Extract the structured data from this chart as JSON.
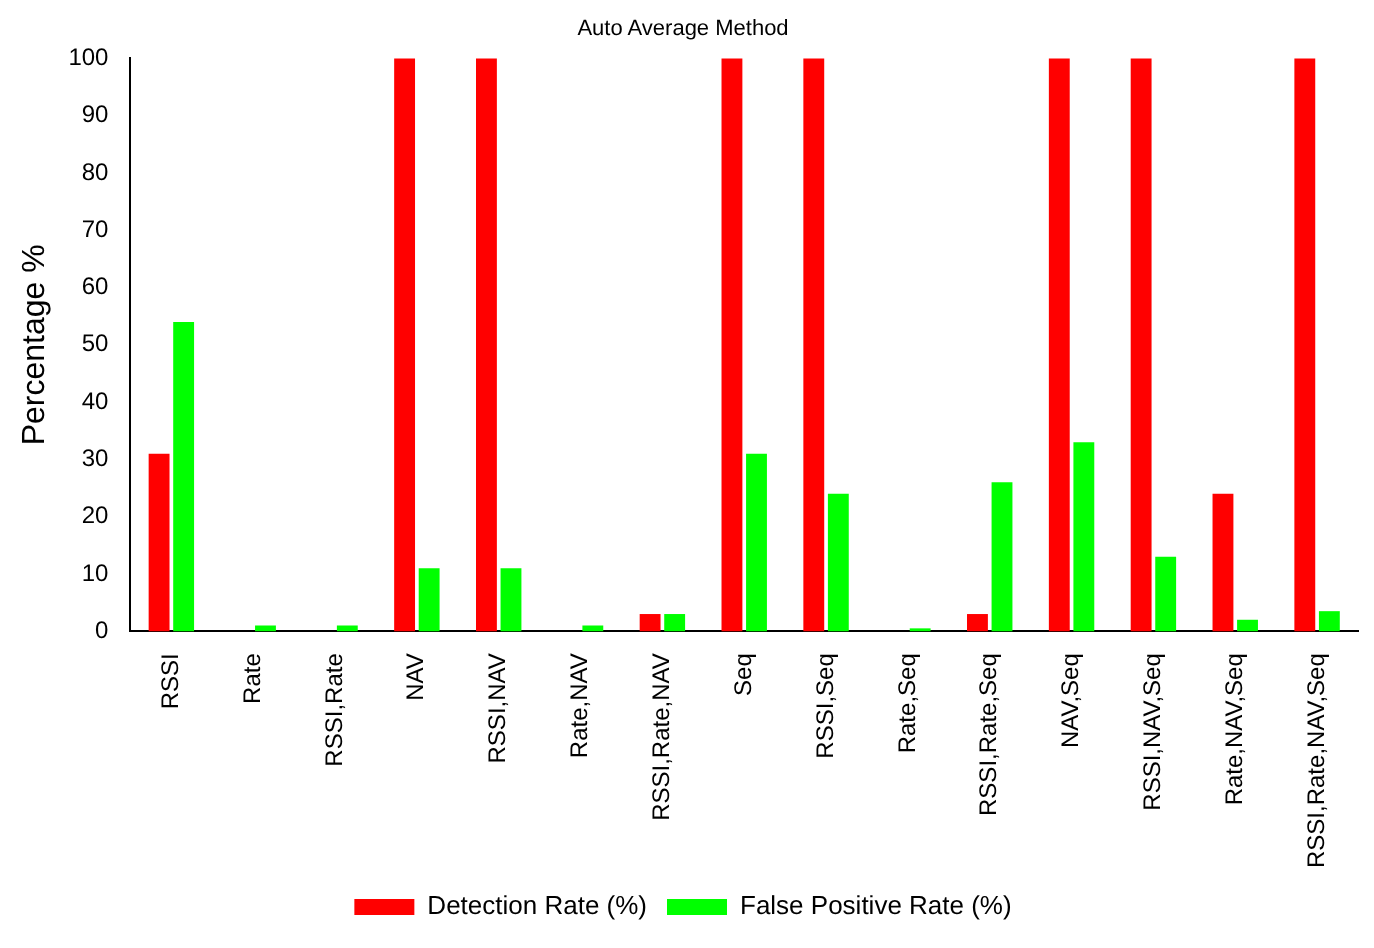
{
  "chart_data": {
    "type": "bar",
    "title": "Auto Average Method",
    "ylabel": "Percentage %",
    "categories": [
      "RSSI",
      "Rate",
      "RSSI,Rate",
      "NAV",
      "RSSI,NAV",
      "Rate,NAV",
      "RSSI,Rate,NAV",
      "Seq",
      "RSSI,Seq",
      "Rate,Seq",
      "RSSI,Rate,Seq",
      "NAV,Seq",
      "RSSI,NAV,Seq",
      "Rate,NAV,Seq",
      "RSSI,Rate,NAV,Seq"
    ],
    "series": [
      {
        "name": "Detection Rate (%)",
        "color": "#ff0000",
        "values": [
          31,
          0,
          0,
          100,
          100,
          0,
          3,
          100,
          100,
          0,
          3,
          100,
          100,
          24,
          100
        ]
      },
      {
        "name": "False Positive Rate (%)",
        "color": "#00ff00",
        "values": [
          54,
          1,
          1,
          11,
          11,
          1,
          3,
          31,
          24,
          0.5,
          26,
          33,
          13,
          2,
          3.5
        ]
      }
    ],
    "ylim": [
      0,
      100
    ],
    "yticks": [
      0,
      10,
      20,
      30,
      40,
      50,
      60,
      70,
      80,
      90,
      100
    ],
    "grid": false,
    "legend": "bottom"
  }
}
